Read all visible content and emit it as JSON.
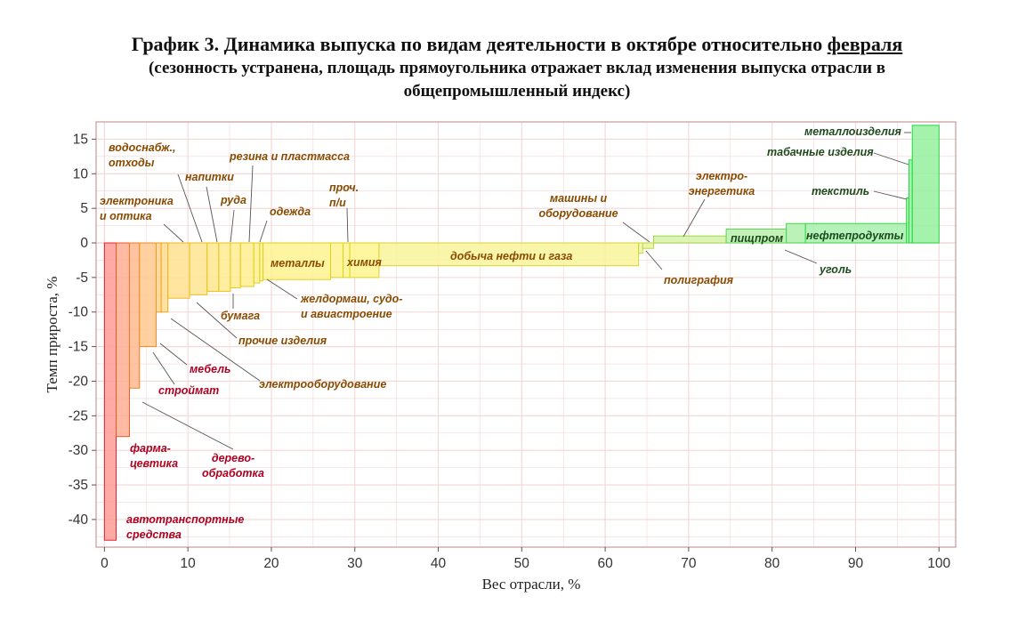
{
  "title": {
    "main": "График 3. Динамика выпуска по видам деятельности в октябре относительно",
    "main_underlined": "февраля",
    "sub_line1": "(сезонность устранена, площадь прямоугольника отражает вклад изменения выпуска отрасли в",
    "sub_line2": "общепромышленный индекс)"
  },
  "colors": {
    "background": "#ffffff",
    "grid": "#f3d6d6",
    "frame": "#c99a9a",
    "zero_line": "#e7c9c9"
  },
  "chart_data": {
    "type": "bar",
    "subtype": "variable-width (mekko) bar chart sorted by growth rate",
    "xlabel": "Вес отрасли, %",
    "ylabel": "Темп прироста, %",
    "xlim": [
      -1,
      102
    ],
    "ylim": [
      -44,
      17.5
    ],
    "x_ticks": [
      "0",
      "10",
      "20",
      "30",
      "40",
      "50",
      "60",
      "70",
      "80",
      "90",
      "100"
    ],
    "y_ticks": [
      "15",
      "10",
      "5",
      "0",
      "-5",
      "-10",
      "-15",
      "-20",
      "-25",
      "-30",
      "-35",
      "-40"
    ],
    "grid": true,
    "sectors": [
      {
        "label": "автотранспортные средства",
        "x0": 0.0,
        "x1": 1.4,
        "value": -43.0,
        "fill": "#ff9b95",
        "stroke": "#e8222e",
        "text": "#b00020"
      },
      {
        "label": "фарма-цевтика",
        "x0": 1.4,
        "x1": 3.0,
        "value": -28.0,
        "fill": "#ffae93",
        "stroke": "#ef5a2a",
        "text": "#b00020"
      },
      {
        "label": "дерево-обработка",
        "x0": 3.0,
        "x1": 4.2,
        "value": -21.0,
        "fill": "#ffb98f",
        "stroke": "#f07a24",
        "text": "#b00020"
      },
      {
        "label": "стройматериалы",
        "x0": 4.2,
        "x1": 6.2,
        "value": -15.0,
        "fill": "#ffc98f",
        "stroke": "#f28c22",
        "text": "#b00020"
      },
      {
        "label": "мебель",
        "x0": 6.2,
        "x1": 6.8,
        "value": -10.0,
        "fill": "#ffd38f",
        "stroke": "#f29a1e",
        "text": "#b00020"
      },
      {
        "label": "электрооборудование",
        "x0": 6.8,
        "x1": 7.6,
        "value": -10.0,
        "fill": "#ffda8f",
        "stroke": "#f2a81c",
        "text": "#8a4a00"
      },
      {
        "label": "прочие изделия",
        "x0": 7.6,
        "x1": 10.2,
        "value": -8.0,
        "fill": "#ffe08f",
        "stroke": "#f0b81c",
        "text": "#8a4a00"
      },
      {
        "label": "электроника и оптика",
        "x0": 10.2,
        "x1": 12.3,
        "value": -7.5,
        "fill": "#ffe58f",
        "stroke": "#eebd1c",
        "text": "#8a4a00"
      },
      {
        "label": "водоснабж., отходы",
        "x0": 12.3,
        "x1": 13.7,
        "value": -7.0,
        "fill": "#ffe88f",
        "stroke": "#ecc21c",
        "text": "#8a4a00"
      },
      {
        "label": "бумага",
        "x0": 13.7,
        "x1": 15.1,
        "value": -7.0,
        "fill": "#ffea8f",
        "stroke": "#eac51c",
        "text": "#8a4a00"
      },
      {
        "label": "напитки",
        "x0": 15.1,
        "x1": 16.3,
        "value": -6.5,
        "fill": "#ffec8f",
        "stroke": "#e8c81c",
        "text": "#8a4a00"
      },
      {
        "label": "руда",
        "x0": 16.3,
        "x1": 17.9,
        "value": -6.3,
        "fill": "#ffee8f",
        "stroke": "#e6ca1c",
        "text": "#8a4a00"
      },
      {
        "label": "резина и пластмасса",
        "x0": 17.9,
        "x1": 18.6,
        "value": -5.8,
        "fill": "#fff08f",
        "stroke": "#e4cc1c",
        "text": "#8a4a00"
      },
      {
        "label": "одежда",
        "x0": 18.6,
        "x1": 19.0,
        "value": -5.5,
        "fill": "#fff18f",
        "stroke": "#e2ce1c",
        "text": "#8a4a00"
      },
      {
        "label": "металлы",
        "x0": 19.0,
        "x1": 27.1,
        "value": -5.3,
        "fill": "#fff28f",
        "stroke": "#e0d01c",
        "text": "#8a4a00"
      },
      {
        "label": "желдормаш, судо- и авиастроение",
        "x0": 27.1,
        "x1": 28.6,
        "value": -5.0,
        "fill": "#fff38f",
        "stroke": "#ded21c",
        "text": "#8a4a00"
      },
      {
        "label": "проч. п/и",
        "x0": 28.6,
        "x1": 29.4,
        "value": -5.0,
        "fill": "#fff48f",
        "stroke": "#dcd31c",
        "text": "#8a4a00"
      },
      {
        "label": "химия",
        "x0": 29.4,
        "x1": 32.9,
        "value": -5.0,
        "fill": "#fff58f",
        "stroke": "#dad41c",
        "text": "#8a4a00"
      },
      {
        "label": "добыча нефти и газа",
        "x0": 32.9,
        "x1": 64.0,
        "value": -3.3,
        "fill": "#f8f49a",
        "stroke": "#d8d23a",
        "text": "#8a4a00"
      },
      {
        "label": "полиграфия",
        "x0": 64.0,
        "x1": 64.5,
        "value": -1.5,
        "fill": "#f0f4a0",
        "stroke": "#ccd43a",
        "text": "#8a4a00"
      },
      {
        "label": "машины и оборудование",
        "x0": 64.5,
        "x1": 65.8,
        "value": -0.8,
        "fill": "#e8f4a0",
        "stroke": "#c0d83a",
        "text": "#8a4a00"
      },
      {
        "label": "электро-энергетика",
        "x0": 65.8,
        "x1": 74.5,
        "value": 1.0,
        "fill": "#d8f2a8",
        "stroke": "#9ed84a",
        "text": "#8a4a00"
      },
      {
        "label": "пищпром",
        "x0": 74.5,
        "x1": 81.7,
        "value": 2.0,
        "fill": "#b9f0ac",
        "stroke": "#5ad850",
        "text": "#1e4a1e"
      },
      {
        "label": "уголь",
        "x0": 81.7,
        "x1": 84.0,
        "value": 2.8,
        "fill": "#aef0ac",
        "stroke": "#46d84c",
        "text": "#1e4a1e"
      },
      {
        "label": "нефтепродукты",
        "x0": 84.0,
        "x1": 96.1,
        "value": 2.8,
        "fill": "#a6f0ac",
        "stroke": "#38d848",
        "text": "#1e4a1e"
      },
      {
        "label": "текстиль",
        "x0": 96.1,
        "x1": 96.4,
        "value": 6.5,
        "fill": "#9cf0a6",
        "stroke": "#2cd844",
        "text": "#1e4a1e"
      },
      {
        "label": "табачные изделия",
        "x0": 96.4,
        "x1": 96.8,
        "value": 12.0,
        "fill": "#98f0a2",
        "stroke": "#26d842",
        "text": "#1e4a1e"
      },
      {
        "label": "металлоизделия",
        "x0": 96.8,
        "x1": 100.0,
        "value": 17.0,
        "fill": "#95f09e",
        "stroke": "#22d840",
        "text": "#1e4a1e"
      }
    ]
  }
}
